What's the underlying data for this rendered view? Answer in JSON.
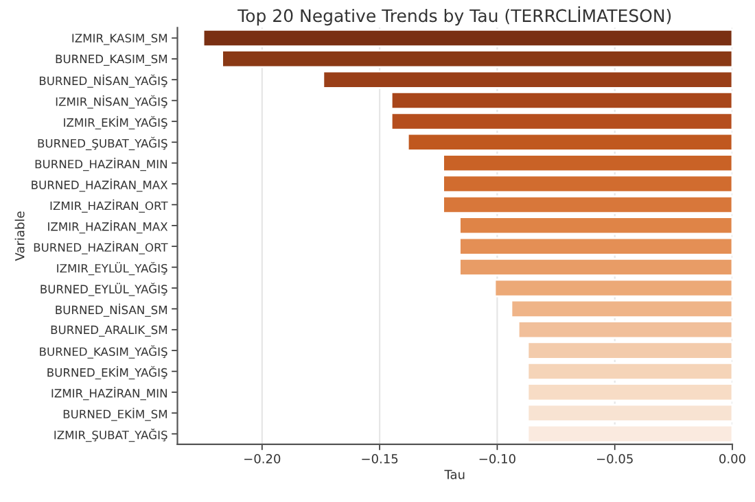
{
  "chart_data": {
    "type": "bar",
    "orientation": "horizontal",
    "title": "Top 20 Negative Trends by Tau (TERRCLİMATESON)",
    "xlabel": "Tau",
    "ylabel": "Variable",
    "categories": [
      "IZMIR_KASIM_SM",
      "BURNED_KASIM_SM",
      "BURNED_NİSAN_YAĞIŞ",
      "IZMIR_NİSAN_YAĞIŞ",
      "IZMIR_EKİM_YAĞIŞ",
      "BURNED_ŞUBAT_YAĞIŞ",
      "BURNED_HAZİRAN_MIN",
      "BURNED_HAZİRAN_MAX",
      "IZMIR_HAZİRAN_ORT",
      "IZMIR_HAZİRAN_MAX",
      "BURNED_HAZİRAN_ORT",
      "IZMIR_EYLÜL_YAĞIŞ",
      "BURNED_EYLÜL_YAĞIŞ",
      "BURNED_NİSAN_SM",
      "BURNED_ARALIK_SM",
      "BURNED_KASIM_YAĞIŞ",
      "BURNED_EKİM_YAĞIŞ",
      "IZMIR_HAZİRAN_MIN",
      "BURNED_EKİM_SM",
      "IZMIR_ŞUBAT_YAĞIŞ"
    ],
    "values": [
      -0.225,
      -0.217,
      -0.174,
      -0.145,
      -0.145,
      -0.138,
      -0.123,
      -0.123,
      -0.123,
      -0.116,
      -0.116,
      -0.116,
      -0.101,
      -0.094,
      -0.091,
      -0.087,
      -0.087,
      -0.087,
      -0.087,
      -0.087
    ],
    "colors": [
      "#7a3013",
      "#8a3915",
      "#9a3f18",
      "#a8461a",
      "#b54e1e",
      "#c0581f",
      "#c96226",
      "#d16c2f",
      "#d8773a",
      "#df8447",
      "#e48f55",
      "#e89c66",
      "#eca977",
      "#efb488",
      "#f1bf9a",
      "#f3cbab",
      "#f5d4b8",
      "#f7dcc5",
      "#f8e3d2",
      "#faeadf"
    ],
    "xlim": [
      -0.236,
      0.0
    ],
    "xticks": [
      {
        "value": -0.2,
        "label": "−0.20"
      },
      {
        "value": -0.15,
        "label": "−0.15"
      },
      {
        "value": -0.1,
        "label": "−0.10"
      },
      {
        "value": -0.05,
        "label": "−0.05"
      },
      {
        "value": 0.0,
        "label": "0.00"
      }
    ],
    "grid": "x"
  }
}
